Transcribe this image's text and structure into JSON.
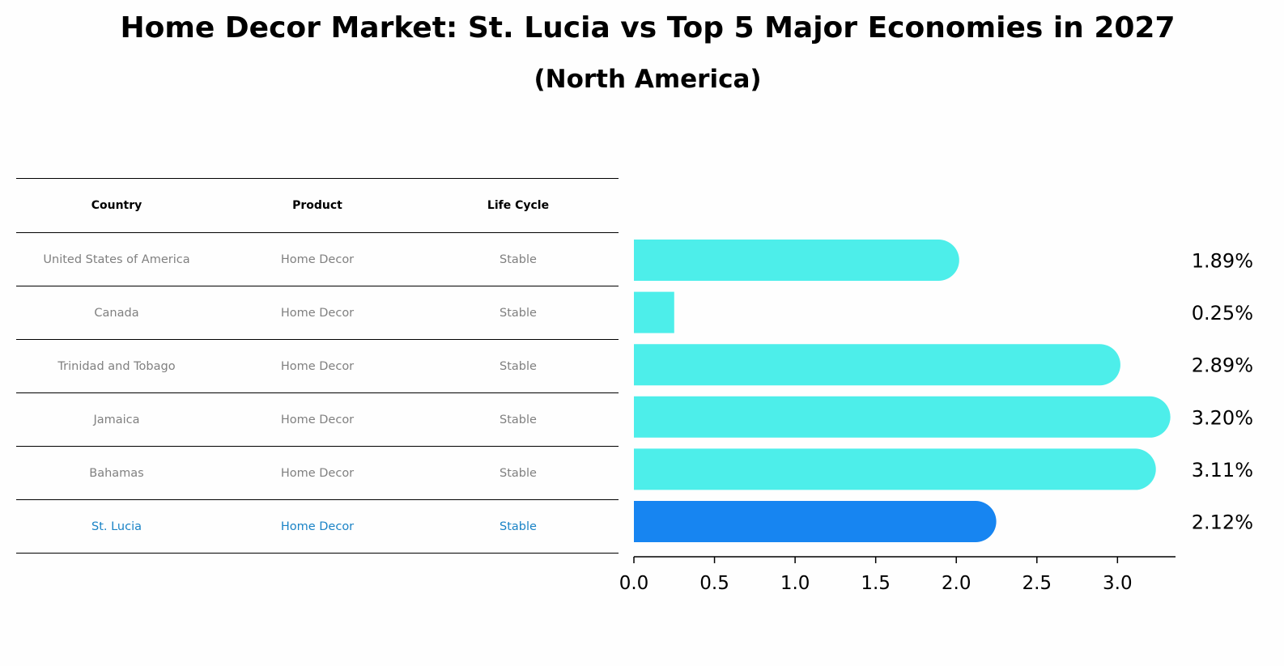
{
  "title": "Home Decor Market: St. Lucia vs Top 5 Major Economies in 2027",
  "subtitle": "(North America)",
  "table": {
    "headers": [
      "Country",
      "Product",
      "Life Cycle"
    ],
    "rows": [
      [
        "United States of America",
        "Home Decor",
        "Stable"
      ],
      [
        "Canada",
        "Home Decor",
        "Stable"
      ],
      [
        "Trinidad and Tobago",
        "Home Decor",
        "Stable"
      ],
      [
        "Jamaica",
        "Home Decor",
        "Stable"
      ],
      [
        "Bahamas",
        "Home Decor",
        "Stable"
      ],
      [
        "St. Lucia",
        "Home Decor",
        "Stable"
      ]
    ],
    "highlight_row": 5
  },
  "chart_data": {
    "type": "bar",
    "orientation": "horizontal",
    "categories": [
      "United States of America",
      "Canada",
      "Trinidad and Tobago",
      "Jamaica",
      "Bahamas",
      "St. Lucia"
    ],
    "values": [
      1.89,
      0.25,
      2.89,
      3.2,
      3.11,
      2.12
    ],
    "value_labels": [
      "1.89%",
      "0.25%",
      "2.89%",
      "3.20%",
      "3.11%",
      "2.12%"
    ],
    "xlim": [
      0,
      3.36
    ],
    "xticks": [
      0.0,
      0.5,
      1.0,
      1.5,
      2.0,
      2.5,
      3.0
    ],
    "xtick_labels": [
      "0.0",
      "0.5",
      "1.0",
      "1.5",
      "2.0",
      "2.5",
      "3.0"
    ],
    "colors": {
      "default": "#4deeea",
      "highlight": "#1785f1"
    },
    "highlight_index": 5,
    "grid": false
  }
}
